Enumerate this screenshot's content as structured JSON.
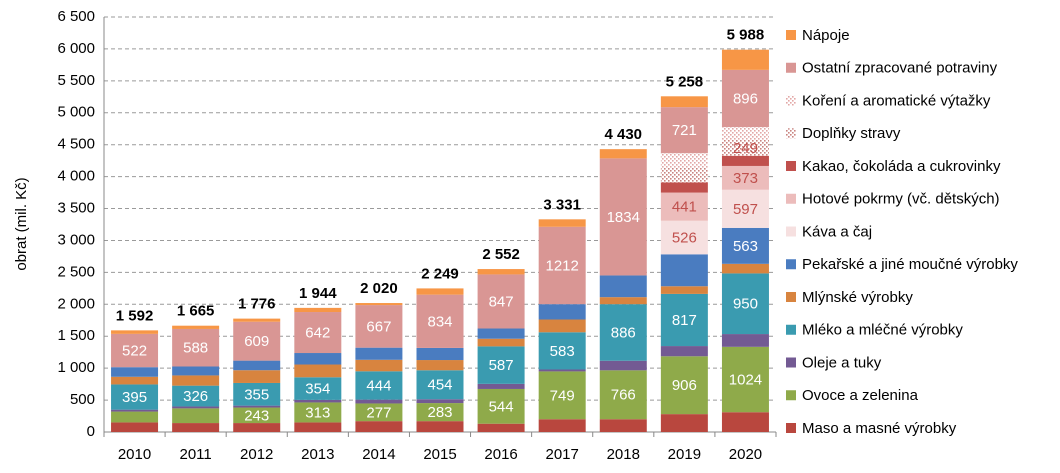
{
  "chart_data": {
    "type": "stacked_bar",
    "y_label": "obrat (mil. Kč)",
    "categories": [
      "2010",
      "2011",
      "2012",
      "2013",
      "2014",
      "2015",
      "2016",
      "2017",
      "2018",
      "2019",
      "2020"
    ],
    "ylim": [
      0,
      6500
    ],
    "yticks": [
      0,
      500,
      {
        "value": 1000,
        "label": "1 000"
      },
      {
        "value": 1500,
        "label": "1 500"
      },
      {
        "value": 2000,
        "label": "2 000"
      },
      {
        "value": 2500,
        "label": "2 500"
      },
      {
        "value": 3000,
        "label": "3 000"
      },
      {
        "value": 3500,
        "label": "3 500"
      },
      {
        "value": 4000,
        "label": "4 000"
      },
      {
        "value": 4500,
        "label": "4 500"
      },
      {
        "value": 5000,
        "label": "5 000"
      },
      {
        "value": 5500,
        "label": "5 500"
      },
      {
        "value": 6000,
        "label": "6 000"
      },
      {
        "value": 6500,
        "label": "6 500"
      }
    ],
    "grid": true,
    "legend": "right",
    "totals": [
      1592,
      1665,
      1776,
      1944,
      2020,
      2249,
      2552,
      3331,
      4430,
      5258,
      5988
    ],
    "total_labels": [
      "1 592",
      "1 665",
      "1 776",
      "1 944",
      "2 020",
      "2 249",
      "2 552",
      "3 331",
      "4 430",
      "5 258",
      "5 988"
    ],
    "series": [
      {
        "name": "Maso a masné výrobky",
        "color": "#b9473e",
        "values": [
          150,
          140,
          140,
          150,
          170,
          170,
          130,
          200,
          200,
          280,
          310
        ]
      },
      {
        "name": "Ovoce a zelenina",
        "color": "#8faa4a",
        "label_color": "#ffffff",
        "values": [
          170,
          230,
          243,
          313,
          277,
          283,
          544,
          749,
          766,
          906,
          1024
        ],
        "value_labels": [
          null,
          null,
          243,
          313,
          277,
          283,
          544,
          749,
          766,
          906,
          1024
        ]
      },
      {
        "name": "Oleje a tuky",
        "color": "#735a93",
        "values": [
          30,
          30,
          30,
          40,
          60,
          60,
          80,
          30,
          150,
          160,
          200
        ]
      },
      {
        "name": "Mléko a mléčné výrobky",
        "color": "#3a9bb0",
        "label_color": "#ffffff",
        "values": [
          395,
          326,
          355,
          354,
          444,
          454,
          587,
          583,
          886,
          817,
          950
        ],
        "value_labels": [
          395,
          326,
          355,
          354,
          444,
          454,
          587,
          583,
          886,
          817,
          950
        ]
      },
      {
        "name": "Mlýnské výrobky",
        "color": "#d8843f",
        "values": [
          120,
          160,
          200,
          200,
          180,
          160,
          120,
          200,
          110,
          120,
          150
        ]
      },
      {
        "name": "Pekařské a jiné moučné výrobky",
        "color": "#4a7cc0",
        "label_color": "#ffffff",
        "values": [
          150,
          140,
          150,
          180,
          190,
          190,
          160,
          240,
          340,
          500,
          563
        ],
        "value_labels": [
          null,
          null,
          null,
          null,
          null,
          null,
          null,
          null,
          null,
          null,
          563
        ]
      },
      {
        "name": "Káva a čaj",
        "color": "#f6e0e0",
        "label_color": "#c0504d",
        "values": [
          null,
          null,
          null,
          null,
          null,
          null,
          null,
          null,
          null,
          526,
          597
        ],
        "value_labels": [
          null,
          null,
          null,
          null,
          null,
          null,
          null,
          null,
          null,
          526,
          597
        ]
      },
      {
        "name": "Hotové pokrmy (vč. dětských)",
        "color": "#ecbcbb",
        "label_color": "#c0504d",
        "values": [
          null,
          null,
          null,
          null,
          null,
          null,
          null,
          null,
          null,
          441,
          373
        ],
        "value_labels": [
          null,
          null,
          null,
          null,
          null,
          null,
          null,
          null,
          null,
          441,
          373
        ]
      },
      {
        "name": "Kakao, čokoláda a cukrovinky",
        "color": "#c0504d",
        "values": [
          null,
          null,
          null,
          null,
          null,
          null,
          null,
          null,
          null,
          160,
          160
        ]
      },
      {
        "name": "Doplňky stravy",
        "color": "#c9837f",
        "pattern": "dots",
        "label_color": "#c0504d",
        "values": [
          null,
          null,
          null,
          null,
          null,
          null,
          null,
          null,
          null,
          230,
          249
        ],
        "value_labels": [
          null,
          null,
          null,
          null,
          null,
          null,
          null,
          null,
          null,
          null,
          249
        ]
      },
      {
        "name": "Koření a aromatické výtažky",
        "color": "#e2a8a6",
        "pattern": "dots",
        "values": [
          null,
          null,
          null,
          null,
          null,
          null,
          null,
          null,
          null,
          227,
          200
        ]
      },
      {
        "name": "Ostatní zpracované potraviny",
        "color": "#d99694",
        "label_color": "#ffffff",
        "values": [
          522,
          588,
          609,
          642,
          667,
          834,
          847,
          1212,
          1834,
          721,
          896
        ],
        "value_labels": [
          522,
          588,
          609,
          642,
          667,
          834,
          847,
          1212,
          1834,
          721,
          896
        ]
      },
      {
        "name": "Nápoje",
        "color": "#f79646",
        "values": [
          55,
          51,
          49,
          65,
          32,
          98,
          84,
          117,
          144,
          170,
          316
        ]
      }
    ]
  }
}
